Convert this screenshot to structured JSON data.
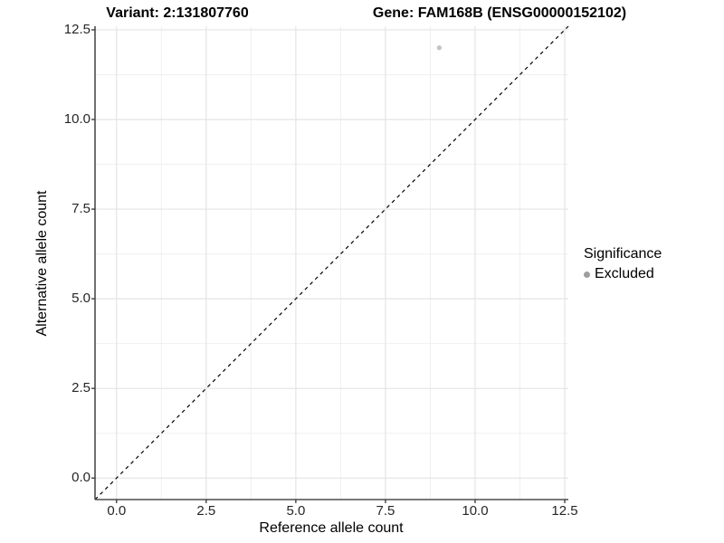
{
  "chart_data": {
    "type": "scatter",
    "title_left": "Variant: 2:131807760",
    "title_right": "Gene: FAM168B (ENSG00000152102)",
    "xlabel": "Reference allele count",
    "ylabel": "Alternative allele count",
    "xlim": [
      -0.6,
      12.6
    ],
    "ylim": [
      -0.6,
      12.6
    ],
    "x_ticks": [
      0,
      2.5,
      5,
      7.5,
      10,
      12.5
    ],
    "y_ticks": [
      0,
      2.5,
      5,
      7.5,
      10,
      12.5
    ],
    "x_tick_labels": [
      "0.0",
      "2.5",
      "5.0",
      "7.5",
      "10.0",
      "12.5"
    ],
    "y_tick_labels": [
      "0.0",
      "2.5",
      "5.0",
      "7.5",
      "10.0",
      "12.5"
    ],
    "minor_ticks": [
      1.25,
      3.75,
      6.25,
      8.75,
      11.25
    ],
    "grid": true,
    "series": [
      {
        "name": "Excluded",
        "color": "#c2c2c2",
        "points": [
          {
            "x": 9,
            "y": 12
          }
        ]
      }
    ],
    "reference_line": {
      "type": "identity",
      "style": "dashed",
      "color": "#000000"
    },
    "legend": {
      "position": "right",
      "title": "Significance",
      "items": [
        {
          "label": "Excluded",
          "color": "#9e9e9e"
        }
      ]
    },
    "colors": {
      "major_grid": "#e4e4e4",
      "minor_grid": "#f0f0f0",
      "axis_line": "#4d4d4d",
      "tick_mark": "#333333"
    }
  }
}
